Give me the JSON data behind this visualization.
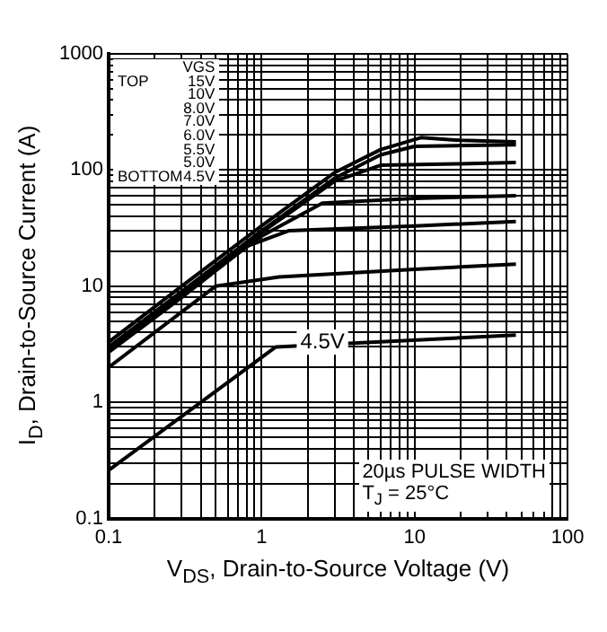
{
  "chart_data": {
    "type": "line",
    "xlabel": "V$_{DS}$, Drain-to-Source Voltage (V)",
    "ylabel": "I$_{D}$, Drain-to-Source Current (A)",
    "log": "xy",
    "grid": true,
    "marker": "none",
    "line_style": "solid",
    "xlim": [
      0.1,
      100
    ],
    "ylim": [
      0.1,
      1000
    ],
    "xticks": [
      0.1,
      {
        "value": 0.2,
        "label": null
      },
      {
        "value": 0.3,
        "label": null
      },
      {
        "value": 0.4,
        "label": null
      },
      {
        "value": 0.5,
        "label": null
      },
      {
        "value": 0.6,
        "label": null
      },
      {
        "value": 0.7,
        "label": null
      },
      {
        "value": 0.8,
        "label": null
      },
      {
        "value": 0.9,
        "label": null
      },
      1,
      {
        "value": 2,
        "label": null
      },
      {
        "value": 3,
        "label": null
      },
      {
        "value": 4,
        "label": null
      },
      {
        "value": 5,
        "label": null
      },
      {
        "value": 6,
        "label": null
      },
      {
        "value": 7,
        "label": null
      },
      {
        "value": 8,
        "label": null
      },
      {
        "value": 9,
        "label": null
      },
      10,
      {
        "value": 20,
        "label": null
      },
      {
        "value": 30,
        "label": null
      },
      {
        "value": 40,
        "label": null
      },
      {
        "value": 50,
        "label": null
      },
      {
        "value": 60,
        "label": null
      },
      {
        "value": 70,
        "label": null
      },
      {
        "value": 80,
        "label": null
      },
      {
        "value": 90,
        "label": null
      },
      100
    ],
    "yticks": [
      0.1,
      {
        "value": 0.2,
        "label": null
      },
      {
        "value": 0.3,
        "label": null
      },
      {
        "value": 0.4,
        "label": null
      },
      {
        "value": 0.5,
        "label": null
      },
      {
        "value": 0.6,
        "label": null
      },
      {
        "value": 0.7,
        "label": null
      },
      {
        "value": 0.8,
        "label": null
      },
      {
        "value": 0.9,
        "label": null
      },
      1,
      {
        "value": 2,
        "label": null
      },
      {
        "value": 3,
        "label": null
      },
      {
        "value": 4,
        "label": null
      },
      {
        "value": 5,
        "label": null
      },
      {
        "value": 6,
        "label": null
      },
      {
        "value": 7,
        "label": null
      },
      {
        "value": 8,
        "label": null
      },
      {
        "value": 9,
        "label": null
      },
      10,
      {
        "value": 20,
        "label": null
      },
      {
        "value": 30,
        "label": null
      },
      {
        "value": 40,
        "label": null
      },
      {
        "value": 50,
        "label": null
      },
      {
        "value": 60,
        "label": null
      },
      {
        "value": 70,
        "label": null
      },
      {
        "value": 80,
        "label": null
      },
      {
        "value": 90,
        "label": null
      },
      100,
      {
        "value": 200,
        "label": null
      },
      {
        "value": 300,
        "label": null
      },
      {
        "value": 400,
        "label": null
      },
      {
        "value": 500,
        "label": null
      },
      {
        "value": 600,
        "label": null
      },
      {
        "value": 700,
        "label": null
      },
      {
        "value": 800,
        "label": null
      },
      {
        "value": 900,
        "label": null
      },
      1000
    ],
    "series": [
      {
        "color": "#000000",
        "x": [
          0.1,
          0.3,
          1,
          3,
          6,
          11,
          20,
          46
        ],
        "values": [
          3.3,
          10,
          33,
          95,
          150,
          190,
          180,
          175
        ]
      },
      {
        "color": "#000000",
        "x": [
          0.1,
          0.3,
          1,
          3,
          6,
          10,
          46
        ],
        "values": [
          3,
          9,
          30,
          85,
          135,
          160,
          165
        ]
      },
      {
        "color": "#000000",
        "x": [
          0.1,
          0.3,
          1,
          3,
          6,
          20,
          46
        ],
        "values": [
          2.9,
          8.7,
          29,
          80,
          110,
          113,
          116
        ]
      },
      {
        "color": "#000000",
        "x": [
          0.1,
          0.3,
          1,
          2.5,
          10,
          46
        ],
        "values": [
          2.8,
          8.4,
          27,
          52,
          57,
          60
        ]
      },
      {
        "color": "#000000",
        "x": [
          0.1,
          0.3,
          0.8,
          1.5,
          10,
          46
        ],
        "values": [
          2.7,
          8,
          22,
          30,
          33,
          36
        ]
      },
      {
        "color": "#000000",
        "x": [
          0.1,
          0.5,
          1.3,
          10,
          46
        ],
        "values": [
          2,
          10,
          12,
          14,
          15.5
        ]
      },
      {
        "color": "#000000",
        "x": [
          0.1,
          1.24,
          46
        ],
        "values": [
          0.26,
          3,
          3.8
        ]
      }
    ],
    "annotations": [
      "VGS",
      "TOP",
      "15V",
      "10V",
      "8.0V",
      "7.0V",
      "6.0V",
      "5.5V",
      "5.0V",
      "BOTTOM",
      "4.5V",
      "20µs PULSE WIDTH",
      "T$_{J}$ = 25°C",
      {
        "text": "4.5V",
        "x": 2.5,
        "y": 3.3
      }
    ]
  }
}
